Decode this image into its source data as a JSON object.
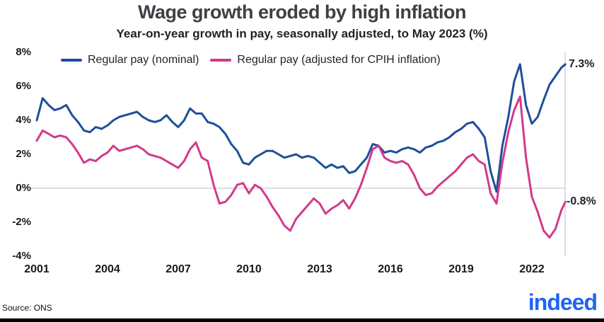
{
  "title": "Wage growth eroded by high inflation",
  "subtitle": "Year-on-year growth in pay, seasonally adjusted, to May 2023 (%)",
  "source": "Source: ONS",
  "logo_text": "indeed",
  "colors": {
    "nominal_line": "#1d4f9b",
    "real_line": "#d23a8b",
    "grid": "#d4d4d4",
    "logo_blue": "#2164f3"
  },
  "annotations": [
    {
      "label": "7.3%",
      "series": "Regular pay (nominal)"
    },
    {
      "label": "-0.8%",
      "series": "Regular pay (adjusted for CPIH inflation)"
    }
  ],
  "chart_data": {
    "type": "line",
    "title": "Wage growth eroded by high inflation",
    "subtitle": "Year-on-year growth in pay, seasonally adjusted, to May 2023 (%)",
    "xlabel": "",
    "ylabel": "",
    "ylim": [
      -4,
      8
    ],
    "xlim": [
      2001,
      2023.6
    ],
    "grid": "zero-line-only",
    "legend_position": "top-left",
    "x_ticks": [
      2001,
      2004,
      2007,
      2010,
      2013,
      2016,
      2019,
      2022
    ],
    "y_ticks": [
      "8%",
      "6%",
      "4%",
      "2%",
      "0%",
      "-2%",
      "-4%"
    ],
    "x": [
      2001,
      2001.25,
      2001.5,
      2001.75,
      2002,
      2002.25,
      2002.5,
      2002.75,
      2003,
      2003.25,
      2003.5,
      2003.75,
      2004,
      2004.25,
      2004.5,
      2004.75,
      2005,
      2005.25,
      2005.5,
      2005.75,
      2006,
      2006.25,
      2006.5,
      2006.75,
      2007,
      2007.25,
      2007.5,
      2007.75,
      2008,
      2008.25,
      2008.5,
      2008.75,
      2009,
      2009.25,
      2009.5,
      2009.75,
      2010,
      2010.25,
      2010.5,
      2010.75,
      2011,
      2011.25,
      2011.5,
      2011.75,
      2012,
      2012.25,
      2012.5,
      2012.75,
      2013,
      2013.25,
      2013.5,
      2013.75,
      2014,
      2014.25,
      2014.5,
      2014.75,
      2015,
      2015.25,
      2015.5,
      2015.75,
      2016,
      2016.25,
      2016.5,
      2016.75,
      2017,
      2017.25,
      2017.5,
      2017.75,
      2018,
      2018.25,
      2018.5,
      2018.75,
      2019,
      2019.25,
      2019.5,
      2019.75,
      2020,
      2020.25,
      2020.5,
      2020.75,
      2021,
      2021.25,
      2021.5,
      2021.75,
      2022,
      2022.25,
      2022.5,
      2022.75,
      2023,
      2023.25,
      2023.42
    ],
    "series": [
      {
        "name": "Regular pay (nominal)",
        "color": "#1d4f9b",
        "end_label": "7.3%",
        "values": [
          4.0,
          5.3,
          4.9,
          4.6,
          4.7,
          4.9,
          4.3,
          3.9,
          3.4,
          3.3,
          3.6,
          3.5,
          3.7,
          4.0,
          4.2,
          4.3,
          4.4,
          4.5,
          4.2,
          4.0,
          3.9,
          4.0,
          4.3,
          3.9,
          3.6,
          4.0,
          4.7,
          4.4,
          4.4,
          3.9,
          3.8,
          3.6,
          3.2,
          2.6,
          2.2,
          1.5,
          1.4,
          1.8,
          2.0,
          2.2,
          2.2,
          2.0,
          1.8,
          1.9,
          2.0,
          1.8,
          1.9,
          1.8,
          1.5,
          1.2,
          1.4,
          1.2,
          1.3,
          0.9,
          1.0,
          1.4,
          1.8,
          2.6,
          2.5,
          2.1,
          2.2,
          2.1,
          2.3,
          2.4,
          2.3,
          2.1,
          2.4,
          2.5,
          2.7,
          2.8,
          3.0,
          3.3,
          3.5,
          3.8,
          3.9,
          3.5,
          3.0,
          1.0,
          -0.2,
          2.5,
          4.2,
          6.3,
          7.3,
          4.9,
          3.8,
          4.2,
          5.2,
          6.1,
          6.6,
          7.1,
          7.3
        ]
      },
      {
        "name": "Regular pay (adjusted for CPIH inflation)",
        "color": "#d23a8b",
        "end_label": "-0.8%",
        "values": [
          2.8,
          3.4,
          3.2,
          3.0,
          3.1,
          3.0,
          2.6,
          2.1,
          1.5,
          1.7,
          1.6,
          1.9,
          2.1,
          2.5,
          2.2,
          2.3,
          2.4,
          2.5,
          2.3,
          2.0,
          1.9,
          1.8,
          1.6,
          1.4,
          1.2,
          1.6,
          2.3,
          2.7,
          1.8,
          1.6,
          0.2,
          -0.9,
          -0.8,
          -0.4,
          0.2,
          0.3,
          -0.3,
          0.2,
          0.0,
          -0.5,
          -1.1,
          -1.6,
          -2.2,
          -2.5,
          -1.8,
          -1.4,
          -1.0,
          -0.6,
          -0.9,
          -1.5,
          -1.2,
          -1.0,
          -0.7,
          -1.2,
          -0.6,
          0.2,
          1.2,
          2.3,
          2.5,
          1.8,
          1.6,
          1.5,
          1.6,
          1.4,
          0.8,
          0.0,
          -0.4,
          -0.3,
          0.1,
          0.4,
          0.7,
          1.0,
          1.4,
          1.8,
          2.0,
          1.6,
          1.4,
          -0.3,
          -0.9,
          1.5,
          3.3,
          4.6,
          5.4,
          1.8,
          -0.5,
          -1.4,
          -2.5,
          -2.9,
          -2.4,
          -1.3,
          -0.8
        ]
      }
    ]
  }
}
